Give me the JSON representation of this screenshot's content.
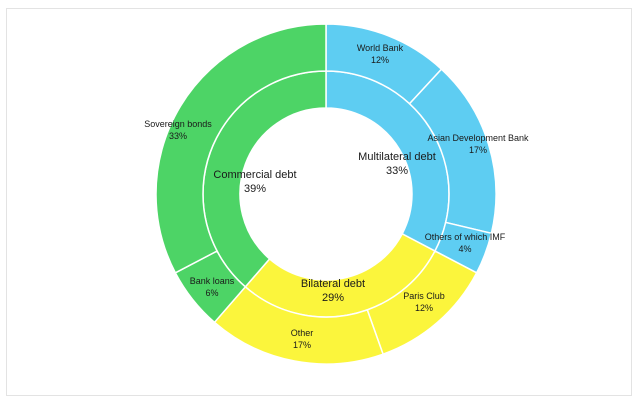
{
  "chart_data": {
    "type": "pie",
    "subtype": "sunburst",
    "title": "",
    "legend": "none",
    "inner_ring": [
      {
        "name": "Multilateral debt",
        "value": 33,
        "label": "33%",
        "color": "#5ecdf2"
      },
      {
        "name": "Bilateral debt",
        "value": 29,
        "label": "29%",
        "color": "#fbf53c"
      },
      {
        "name": "Commercial debt",
        "value": 39,
        "label": "39%",
        "color": "#4dd466"
      }
    ],
    "outer_ring": [
      {
        "name": "World Bank",
        "parent": "Multilateral debt",
        "value": 12,
        "label": "12%",
        "color": "#5ecdf2"
      },
      {
        "name": "Asian Development Bank",
        "parent": "Multilateral debt",
        "value": 17,
        "label": "17%",
        "color": "#5ecdf2"
      },
      {
        "name": "Others of which IMF",
        "parent": "Multilateral debt",
        "value": 4,
        "label": "4%",
        "color": "#5ecdf2"
      },
      {
        "name": "Paris Club",
        "parent": "Bilateral debt",
        "value": 12,
        "label": "12%",
        "color": "#fbf53c"
      },
      {
        "name": "Other",
        "parent": "Bilateral debt",
        "value": 17,
        "label": "17%",
        "color": "#fbf53c"
      },
      {
        "name": "Bank loans",
        "parent": "Commercial debt",
        "value": 6,
        "label": "6%",
        "color": "#4dd466"
      },
      {
        "name": "Sovereign bonds",
        "parent": "Commercial debt",
        "value": 33,
        "label": "33%",
        "color": "#4dd466"
      }
    ]
  }
}
